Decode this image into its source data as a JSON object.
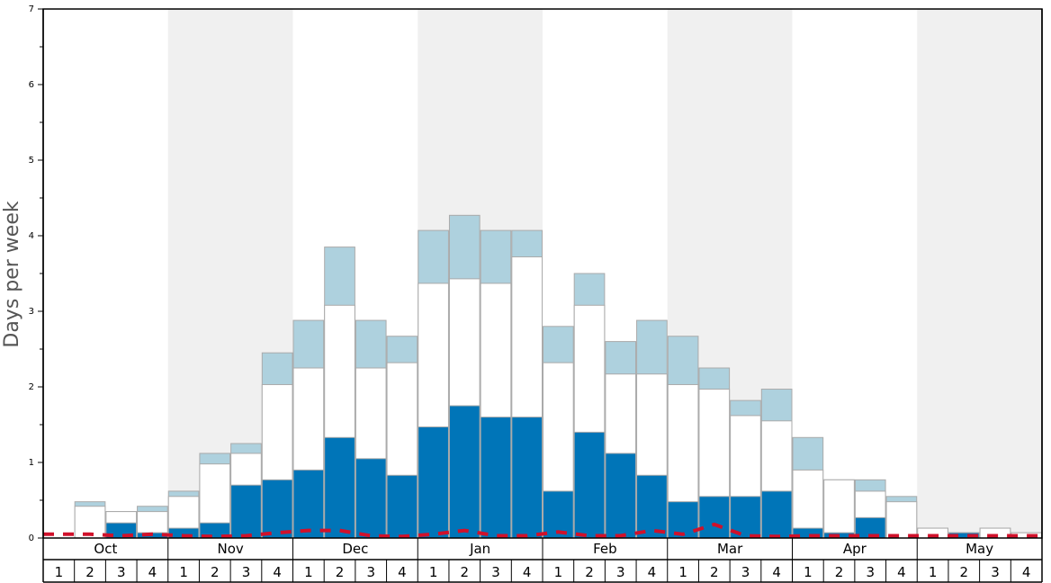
{
  "chart_data": {
    "type": "bar",
    "ylabel": "Days per week",
    "ylim": [
      0,
      7
    ],
    "yticks": [
      "0",
      "1",
      "2",
      "3",
      "4",
      "5",
      "6",
      "7"
    ],
    "months": [
      "Oct",
      "Nov",
      "Dec",
      "Jan",
      "Feb",
      "Mar",
      "Apr",
      "May"
    ],
    "weeks": [
      "1",
      "2",
      "3",
      "4"
    ],
    "colors": {
      "dark": "#0075b8",
      "white": "#ffffff",
      "light": "#aed1de",
      "line": "#d0112b",
      "shade": "#f0f0f0",
      "bar_edge": "#aaaaaa"
    },
    "series": [
      {
        "values": [
          0,
          0,
          0.2,
          0.07,
          0.13,
          0.2,
          0.7,
          0.77,
          0.9,
          1.33,
          1.05,
          0.83,
          1.47,
          1.75,
          1.6,
          1.6,
          0.62,
          1.4,
          1.12,
          0.83,
          0.48,
          0.55,
          0.55,
          0.62,
          0.13,
          0.07,
          0.27,
          0,
          0,
          0.07,
          0,
          0
        ]
      },
      {
        "values": [
          0,
          0.42,
          0.35,
          0.35,
          0.55,
          0.98,
          1.12,
          2.03,
          2.25,
          3.08,
          2.25,
          2.32,
          3.37,
          3.43,
          3.37,
          3.72,
          2.32,
          3.08,
          2.17,
          2.17,
          2.03,
          1.97,
          1.62,
          1.55,
          0.9,
          0.77,
          0.62,
          0.48,
          0.13,
          0.07,
          0.13,
          0.07
        ]
      },
      {
        "values": [
          0,
          0.48,
          0.35,
          0.42,
          0.62,
          1.12,
          1.25,
          2.45,
          2.88,
          3.85,
          2.88,
          2.67,
          4.07,
          4.27,
          4.07,
          4.07,
          2.8,
          3.5,
          2.6,
          2.88,
          2.67,
          2.25,
          1.82,
          1.97,
          1.33,
          0.77,
          0.77,
          0.55,
          0.13,
          0.07,
          0.13,
          0.07
        ]
      },
      {
        "values": [
          0.05,
          0.05,
          0.03,
          0.05,
          0.03,
          0.02,
          0.03,
          0.07,
          0.1,
          0.1,
          0.03,
          0.02,
          0.05,
          0.1,
          0.03,
          0.03,
          0.08,
          0.03,
          0.03,
          0.1,
          0.05,
          0.18,
          0.03,
          0.02,
          0.03,
          0.03,
          0.03,
          0.03,
          0.03,
          0.03,
          0.03,
          0.03
        ]
      }
    ]
  }
}
